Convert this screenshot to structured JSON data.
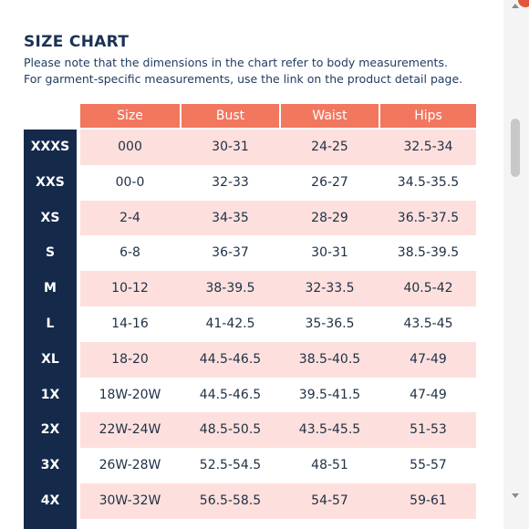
{
  "page": {
    "title": "SIZE CHART",
    "note_line1": "Please note that the dimensions in the chart refer to body measurements.",
    "note_line2": "For garment-specific measurements, use the link on the product detail page."
  },
  "table": {
    "headers": [
      "Size",
      "Bust",
      "Waist",
      "Hips"
    ],
    "rows": [
      {
        "label": "XXXS",
        "size": "000",
        "bust": "30-31",
        "waist": "24-25",
        "hips": "32.5-34"
      },
      {
        "label": "XXS",
        "size": "00-0",
        "bust": "32-33",
        "waist": "26-27",
        "hips": "34.5-35.5"
      },
      {
        "label": "XS",
        "size": "2-4",
        "bust": "34-35",
        "waist": "28-29",
        "hips": "36.5-37.5"
      },
      {
        "label": "S",
        "size": "6-8",
        "bust": "36-37",
        "waist": "30-31",
        "hips": "38.5-39.5"
      },
      {
        "label": "M",
        "size": "10-12",
        "bust": "38-39.5",
        "waist": "32-33.5",
        "hips": "40.5-42"
      },
      {
        "label": "L",
        "size": "14-16",
        "bust": "41-42.5",
        "waist": "35-36.5",
        "hips": "43.5-45"
      },
      {
        "label": "XL",
        "size": "18-20",
        "bust": "44.5-46.5",
        "waist": "38.5-40.5",
        "hips": "47-49"
      },
      {
        "label": "1X",
        "size": "18W-20W",
        "bust": "44.5-46.5",
        "waist": "39.5-41.5",
        "hips": "47-49"
      },
      {
        "label": "2X",
        "size": "22W-24W",
        "bust": "48.5-50.5",
        "waist": "43.5-45.5",
        "hips": "51-53"
      },
      {
        "label": "3X",
        "size": "26W-28W",
        "bust": "52.5-54.5",
        "waist": "48-51",
        "hips": "55-57"
      },
      {
        "label": "4X",
        "size": "30W-32W",
        "bust": "56.5-58.5",
        "waist": "54-57",
        "hips": "59-61"
      }
    ]
  },
  "colors": {
    "header_bg": "#f2775f",
    "size_col_bg": "#152a4a",
    "stripe_pink": "#fde0dd",
    "title_color": "#1a3153"
  }
}
